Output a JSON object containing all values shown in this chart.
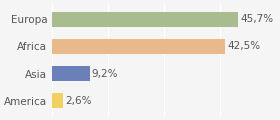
{
  "categories": [
    "Europa",
    "Africa",
    "Asia",
    "America"
  ],
  "values": [
    45.7,
    42.5,
    9.2,
    2.6
  ],
  "labels": [
    "45,7%",
    "42,5%",
    "9,2%",
    "2,6%"
  ],
  "bar_colors": [
    "#a8bc8f",
    "#e8b98a",
    "#6b80b8",
    "#f0d060"
  ],
  "background_color": "#f5f5f5",
  "xlim": [
    0,
    55
  ],
  "bar_height": 0.55,
  "label_fontsize": 7.5,
  "category_fontsize": 7.5,
  "label_color": "#555555"
}
